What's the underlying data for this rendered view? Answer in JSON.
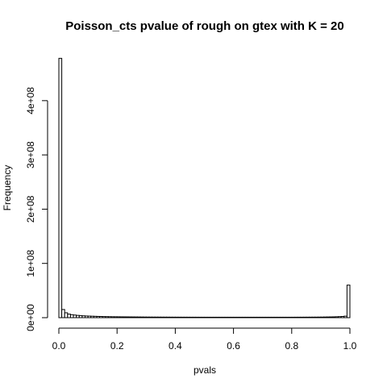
{
  "chart_data": {
    "type": "histogram",
    "title": "Poisson_cts pvalue of rough on gtex with K = 20",
    "xlabel": "pvals",
    "ylabel": "Frequency",
    "xlim": [
      0,
      1
    ],
    "ylim": [
      0,
      480000000
    ],
    "x_ticks": [
      0,
      0.2,
      0.4,
      0.6,
      0.8,
      1
    ],
    "x_tick_labels": [
      "0.0",
      "0.2",
      "0.4",
      "0.6",
      "0.8",
      "1.0"
    ],
    "y_ticks": [
      0,
      100000000,
      200000000,
      300000000,
      400000000
    ],
    "y_tick_labels": [
      "0e+00",
      "1e+08",
      "2e+08",
      "3e+08",
      "4e+08"
    ],
    "bin_width": 0.01,
    "bin_start": 0,
    "values": [
      478000000,
      15000000,
      9000000,
      6500000,
      5500000,
      4800000,
      4200000,
      3800000,
      3400000,
      3100000,
      2900000,
      2700000,
      2500000,
      2300000,
      2200000,
      2000000,
      1900000,
      1800000,
      1700000,
      1650000,
      1600000,
      1550000,
      1500000,
      1450000,
      1400000,
      1350000,
      1300000,
      1250000,
      1200000,
      1150000,
      1100000,
      1080000,
      1060000,
      1040000,
      1020000,
      1000000,
      980000,
      960000,
      940000,
      920000,
      900000,
      890000,
      880000,
      870000,
      860000,
      850000,
      840000,
      830000,
      820000,
      810000,
      800000,
      800000,
      800000,
      800000,
      800000,
      800000,
      800000,
      800000,
      800000,
      800000,
      800000,
      800000,
      800000,
      800000,
      800000,
      800000,
      800000,
      800000,
      800000,
      800000,
      800000,
      800000,
      800000,
      800000,
      800000,
      800000,
      800000,
      800000,
      800000,
      800000,
      820000,
      840000,
      860000,
      880000,
      900000,
      920000,
      950000,
      980000,
      1000000,
      1050000,
      1100000,
      1200000,
      1300000,
      1400000,
      1500000,
      1700000,
      1900000,
      2200000,
      2800000,
      60000000
    ]
  }
}
